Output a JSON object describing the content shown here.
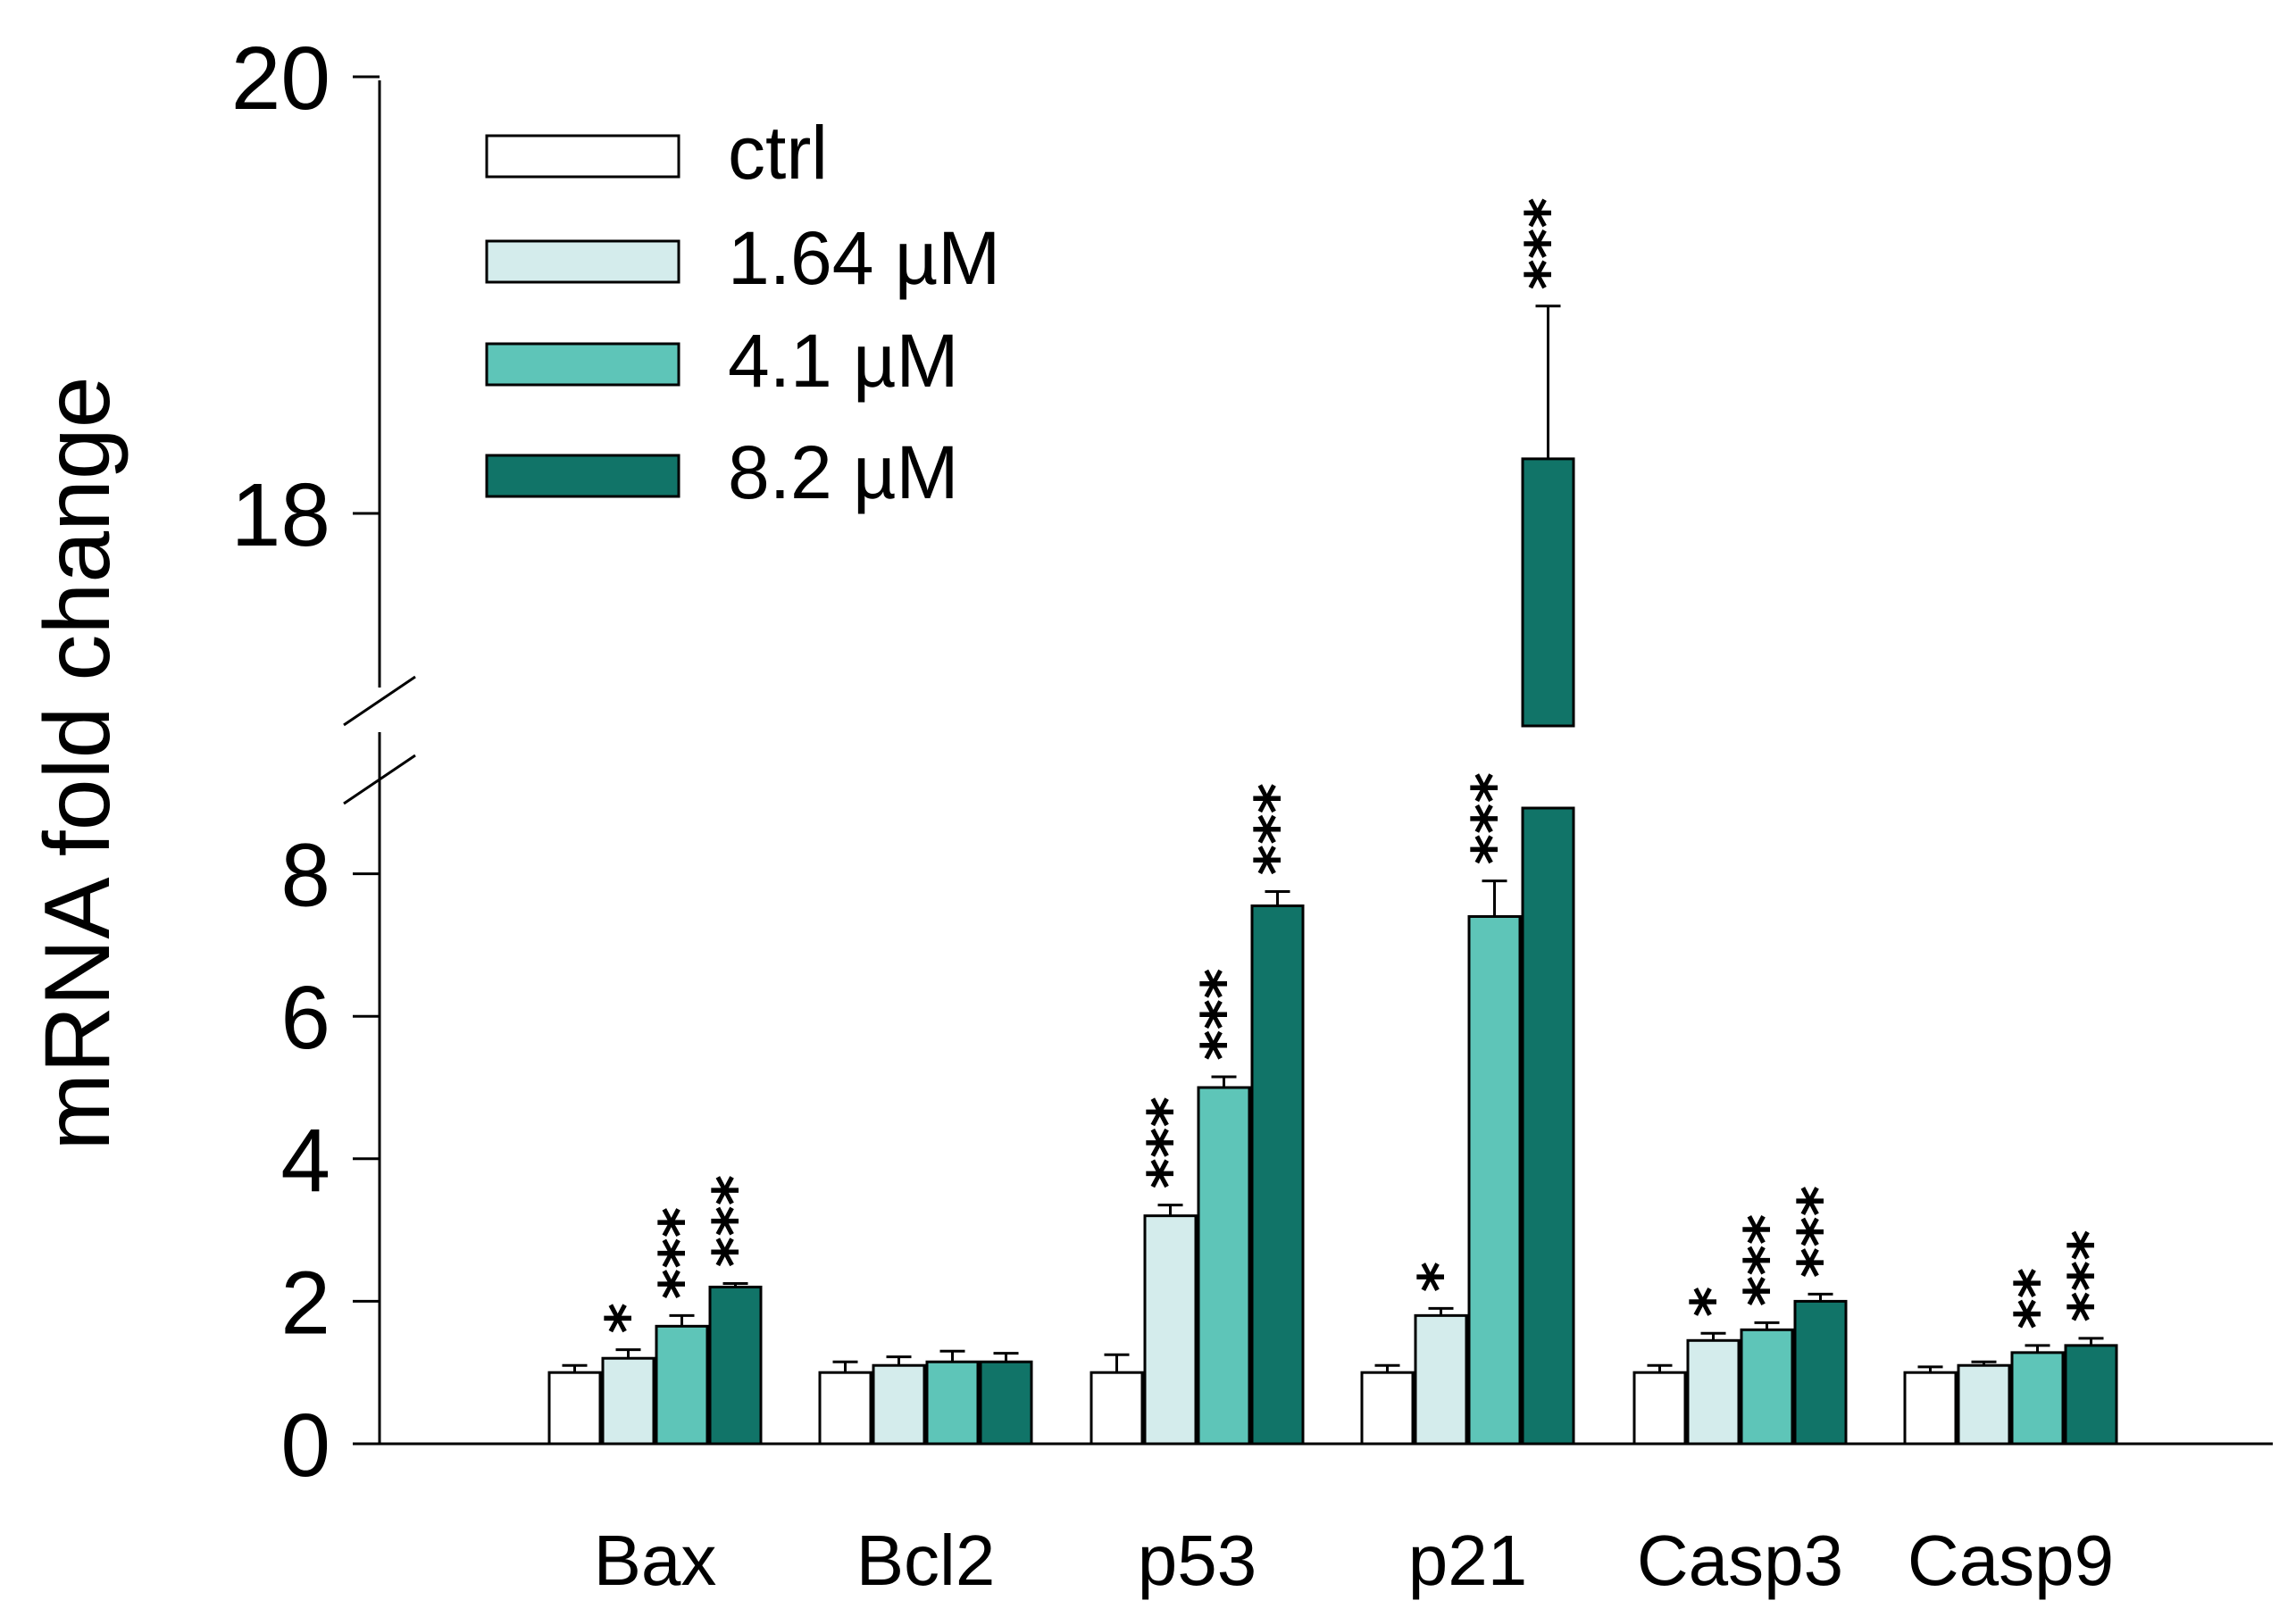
{
  "chart_data": {
    "type": "bar",
    "ylabel": "mRNA fold change",
    "xlabel": "",
    "categories": [
      "Bax",
      "Bcl2",
      "p53",
      "p21",
      "Casp3",
      "Casp9"
    ],
    "series": [
      {
        "name": "ctrl",
        "color": "#ffffff",
        "values": [
          1.0,
          1.0,
          1.0,
          1.0,
          1.0,
          1.0
        ],
        "errors": [
          0.1,
          0.15,
          0.25,
          0.1,
          0.1,
          0.08
        ],
        "significance": [
          "",
          "",
          "",
          "",
          "",
          ""
        ]
      },
      {
        "name": "1.64 µM",
        "color": "#d4ecec",
        "values": [
          1.2,
          1.1,
          3.2,
          1.8,
          1.45,
          1.1
        ],
        "errors": [
          0.12,
          0.12,
          0.15,
          0.1,
          0.1,
          0.05
        ],
        "significance": [
          "*",
          "",
          "***",
          "*",
          "*",
          ""
        ]
      },
      {
        "name": "4.1 µM",
        "color": "#5ec5b8",
        "values": [
          1.65,
          1.15,
          5.0,
          7.4,
          1.6,
          1.28
        ],
        "errors": [
          0.15,
          0.15,
          0.15,
          0.5,
          0.1,
          0.1
        ],
        "significance": [
          "***",
          "",
          "***",
          "***",
          "***",
          "**"
        ]
      },
      {
        "name": "8.2 µM",
        "color": "#117468",
        "values": [
          2.2,
          1.15,
          7.55,
          18.25,
          2.0,
          1.38
        ],
        "errors": [
          0.05,
          0.12,
          0.2,
          0.7,
          0.1,
          0.1
        ],
        "significance": [
          "***",
          "",
          "***",
          "***",
          "***",
          "***"
        ]
      }
    ],
    "y_axis_lower": {
      "range": [
        0,
        8.5
      ],
      "ticks": [
        0,
        2,
        4,
        6,
        8
      ]
    },
    "y_axis_upper": {
      "range": [
        17,
        20
      ],
      "ticks": [
        18,
        20
      ]
    },
    "y_axis_break": true,
    "legend_position": "top-left",
    "grid": false
  }
}
